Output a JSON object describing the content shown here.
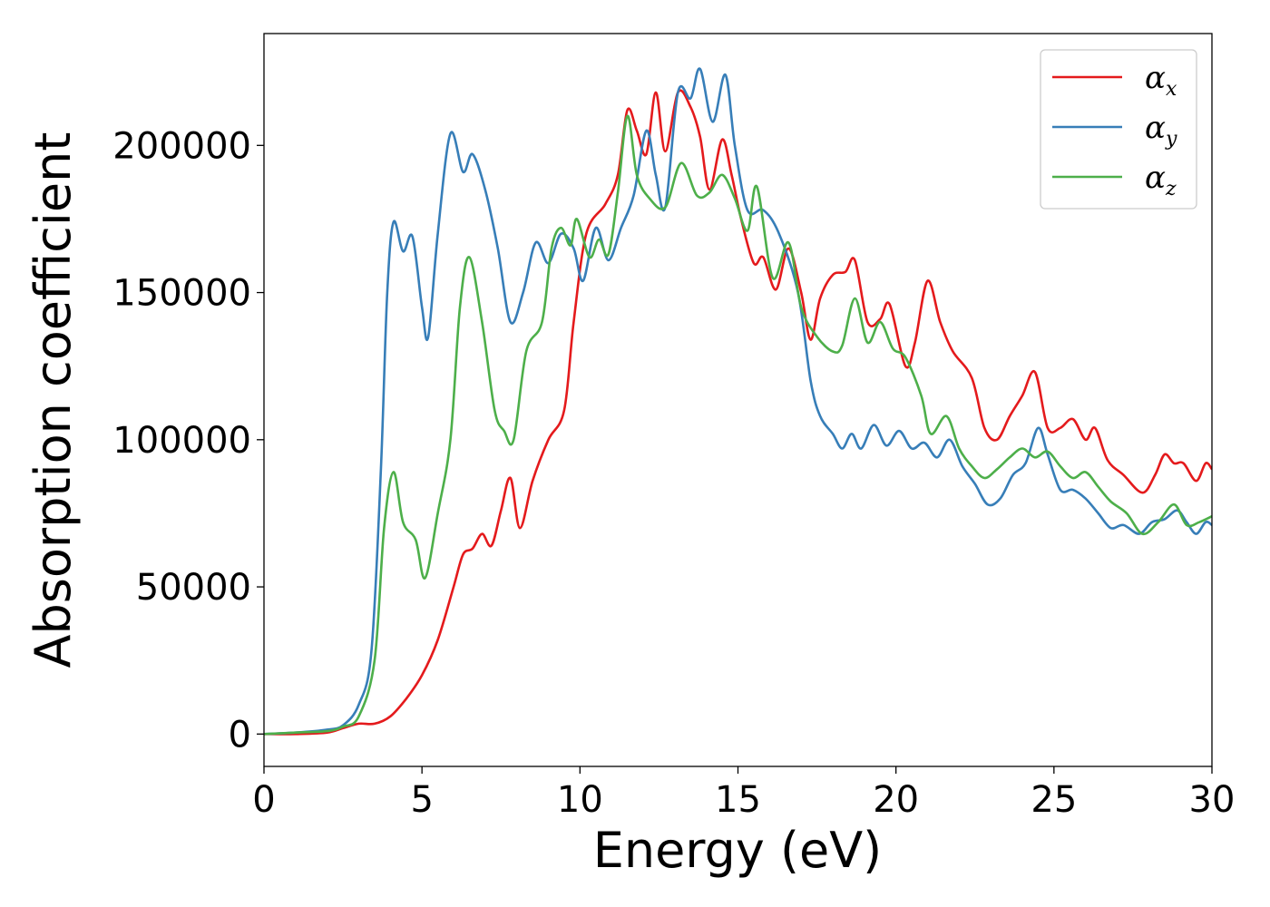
{
  "chart_data": {
    "type": "line",
    "xlabel": "Energy (eV)",
    "ylabel": "Absorption coefficient",
    "xlim": [
      0,
      30
    ],
    "ylim": [
      -11000,
      238000
    ],
    "xticks": [
      0,
      5,
      10,
      15,
      20,
      25,
      30
    ],
    "xtick_labels": [
      "0",
      "5",
      "10",
      "15",
      "20",
      "25",
      "30"
    ],
    "yticks": [
      0,
      50000,
      100000,
      150000,
      200000
    ],
    "ytick_labels": [
      "0",
      "50000",
      "100000",
      "150000",
      "200000"
    ],
    "grid": false,
    "legend_position": "top-right",
    "series": [
      {
        "name": "α_x",
        "label_main": "α",
        "label_sub": "x",
        "color": "#e41a1c",
        "points": [
          [
            0,
            0
          ],
          [
            1,
            0
          ],
          [
            2,
            500
          ],
          [
            2.5,
            2000
          ],
          [
            3,
            3500
          ],
          [
            3.5,
            3500
          ],
          [
            4,
            6000
          ],
          [
            4.5,
            12000
          ],
          [
            5,
            20000
          ],
          [
            5.5,
            32000
          ],
          [
            6,
            50000
          ],
          [
            6.3,
            61000
          ],
          [
            6.6,
            63000
          ],
          [
            6.9,
            68000
          ],
          [
            7.2,
            64000
          ],
          [
            7.5,
            76000
          ],
          [
            7.8,
            87000
          ],
          [
            8.1,
            70000
          ],
          [
            8.5,
            86000
          ],
          [
            9,
            100000
          ],
          [
            9.5,
            110000
          ],
          [
            9.8,
            140000
          ],
          [
            10.2,
            170000
          ],
          [
            10.8,
            180000
          ],
          [
            11.2,
            190000
          ],
          [
            11.5,
            212000
          ],
          [
            11.8,
            205000
          ],
          [
            12.1,
            197000
          ],
          [
            12.4,
            218000
          ],
          [
            12.7,
            198000
          ],
          [
            13.1,
            218000
          ],
          [
            13.5,
            213000
          ],
          [
            13.8,
            203000
          ],
          [
            14.1,
            185000
          ],
          [
            14.5,
            202000
          ],
          [
            14.8,
            190000
          ],
          [
            15.1,
            175000
          ],
          [
            15.5,
            160000
          ],
          [
            15.8,
            162000
          ],
          [
            16.2,
            151000
          ],
          [
            16.6,
            165000
          ],
          [
            17,
            150000
          ],
          [
            17.3,
            134000
          ],
          [
            17.6,
            148000
          ],
          [
            18,
            156000
          ],
          [
            18.4,
            157000
          ],
          [
            18.7,
            161000
          ],
          [
            19.1,
            140000
          ],
          [
            19.5,
            141000
          ],
          [
            19.8,
            146000
          ],
          [
            20.3,
            125000
          ],
          [
            20.6,
            133000
          ],
          [
            21,
            154000
          ],
          [
            21.4,
            140000
          ],
          [
            21.8,
            130000
          ],
          [
            22.4,
            121000
          ],
          [
            22.8,
            104000
          ],
          [
            23.2,
            100000
          ],
          [
            23.6,
            108000
          ],
          [
            24,
            115000
          ],
          [
            24.4,
            123000
          ],
          [
            24.8,
            104000
          ],
          [
            25.2,
            104000
          ],
          [
            25.6,
            107000
          ],
          [
            26,
            100000
          ],
          [
            26.3,
            104000
          ],
          [
            26.7,
            93000
          ],
          [
            27.2,
            88000
          ],
          [
            27.8,
            82000
          ],
          [
            28.2,
            88000
          ],
          [
            28.5,
            95000
          ],
          [
            28.8,
            92000
          ],
          [
            29.1,
            92000
          ],
          [
            29.5,
            86000
          ],
          [
            29.8,
            92000
          ],
          [
            30,
            90000
          ]
        ]
      },
      {
        "name": "α_y",
        "label_main": "α",
        "label_sub": "y",
        "color": "#377eb8",
        "points": [
          [
            0,
            0
          ],
          [
            1,
            500
          ],
          [
            2,
            1500
          ],
          [
            2.5,
            3000
          ],
          [
            3,
            10000
          ],
          [
            3.4,
            28000
          ],
          [
            3.7,
            90000
          ],
          [
            3.9,
            150000
          ],
          [
            4.1,
            174000
          ],
          [
            4.4,
            164000
          ],
          [
            4.7,
            169000
          ],
          [
            5,
            145000
          ],
          [
            5.2,
            135000
          ],
          [
            5.5,
            170000
          ],
          [
            5.9,
            204000
          ],
          [
            6.3,
            191000
          ],
          [
            6.6,
            197000
          ],
          [
            7,
            185000
          ],
          [
            7.4,
            165000
          ],
          [
            7.8,
            140000
          ],
          [
            8.2,
            150000
          ],
          [
            8.6,
            167000
          ],
          [
            9,
            160000
          ],
          [
            9.4,
            170000
          ],
          [
            9.8,
            165000
          ],
          [
            10.1,
            154000
          ],
          [
            10.5,
            172000
          ],
          [
            10.9,
            161000
          ],
          [
            11.3,
            172000
          ],
          [
            11.7,
            183000
          ],
          [
            12.1,
            205000
          ],
          [
            12.4,
            190000
          ],
          [
            12.7,
            179000
          ],
          [
            13.1,
            218000
          ],
          [
            13.5,
            216000
          ],
          [
            13.8,
            226000
          ],
          [
            14.2,
            208000
          ],
          [
            14.6,
            224000
          ],
          [
            14.9,
            200000
          ],
          [
            15.3,
            178000
          ],
          [
            15.8,
            178000
          ],
          [
            16.3,
            170000
          ],
          [
            16.9,
            150000
          ],
          [
            17.3,
            120000
          ],
          [
            17.6,
            108000
          ],
          [
            18,
            102000
          ],
          [
            18.3,
            97000
          ],
          [
            18.6,
            102000
          ],
          [
            18.9,
            97000
          ],
          [
            19.3,
            105000
          ],
          [
            19.7,
            98000
          ],
          [
            20.1,
            103000
          ],
          [
            20.5,
            97000
          ],
          [
            20.9,
            99000
          ],
          [
            21.3,
            94000
          ],
          [
            21.7,
            100000
          ],
          [
            22.1,
            91000
          ],
          [
            22.5,
            85000
          ],
          [
            22.9,
            78000
          ],
          [
            23.3,
            80000
          ],
          [
            23.7,
            88000
          ],
          [
            24.1,
            92000
          ],
          [
            24.5,
            104000
          ],
          [
            24.8,
            95000
          ],
          [
            25.2,
            83000
          ],
          [
            25.6,
            83000
          ],
          [
            26,
            80000
          ],
          [
            26.4,
            75000
          ],
          [
            26.8,
            70000
          ],
          [
            27.2,
            71000
          ],
          [
            27.7,
            68000
          ],
          [
            28.1,
            72000
          ],
          [
            28.5,
            73000
          ],
          [
            28.9,
            76000
          ],
          [
            29.2,
            72000
          ],
          [
            29.5,
            68000
          ],
          [
            29.8,
            72000
          ],
          [
            30,
            71000
          ]
        ]
      },
      {
        "name": "α_z",
        "label_main": "α",
        "label_sub": "z",
        "color": "#4daf4a",
        "points": [
          [
            0,
            0
          ],
          [
            1,
            500
          ],
          [
            2,
            1000
          ],
          [
            2.5,
            2500
          ],
          [
            3,
            6000
          ],
          [
            3.5,
            25000
          ],
          [
            3.8,
            70000
          ],
          [
            4.1,
            89000
          ],
          [
            4.4,
            72000
          ],
          [
            4.8,
            66000
          ],
          [
            5.1,
            53000
          ],
          [
            5.5,
            75000
          ],
          [
            5.9,
            100000
          ],
          [
            6.2,
            145000
          ],
          [
            6.5,
            162000
          ],
          [
            6.9,
            140000
          ],
          [
            7.3,
            110000
          ],
          [
            7.6,
            103000
          ],
          [
            7.9,
            100000
          ],
          [
            8.3,
            130000
          ],
          [
            8.8,
            140000
          ],
          [
            9.1,
            165000
          ],
          [
            9.4,
            172000
          ],
          [
            9.7,
            166000
          ],
          [
            9.9,
            175000
          ],
          [
            10.3,
            162000
          ],
          [
            10.6,
            168000
          ],
          [
            10.9,
            163000
          ],
          [
            11.2,
            184000
          ],
          [
            11.5,
            210000
          ],
          [
            11.8,
            190000
          ],
          [
            12.2,
            182000
          ],
          [
            12.7,
            179000
          ],
          [
            13.2,
            194000
          ],
          [
            13.7,
            183000
          ],
          [
            14.1,
            184000
          ],
          [
            14.5,
            190000
          ],
          [
            14.9,
            182000
          ],
          [
            15.3,
            171000
          ],
          [
            15.6,
            186000
          ],
          [
            16.1,
            155000
          ],
          [
            16.6,
            167000
          ],
          [
            17,
            145000
          ],
          [
            17.5,
            135000
          ],
          [
            18,
            130000
          ],
          [
            18.3,
            132000
          ],
          [
            18.7,
            148000
          ],
          [
            19.1,
            133000
          ],
          [
            19.5,
            140000
          ],
          [
            19.9,
            131000
          ],
          [
            20.3,
            128000
          ],
          [
            20.8,
            115000
          ],
          [
            21.1,
            102000
          ],
          [
            21.6,
            108000
          ],
          [
            22,
            97000
          ],
          [
            22.4,
            91000
          ],
          [
            22.8,
            87000
          ],
          [
            23.2,
            90000
          ],
          [
            23.6,
            94000
          ],
          [
            24,
            97000
          ],
          [
            24.4,
            94000
          ],
          [
            24.8,
            96000
          ],
          [
            25.2,
            91000
          ],
          [
            25.6,
            87000
          ],
          [
            26,
            89000
          ],
          [
            26.4,
            84000
          ],
          [
            26.8,
            79000
          ],
          [
            27.3,
            75000
          ],
          [
            27.8,
            68000
          ],
          [
            28.3,
            72000
          ],
          [
            28.8,
            78000
          ],
          [
            29.2,
            71000
          ],
          [
            29.6,
            72000
          ],
          [
            30,
            74000
          ]
        ]
      }
    ]
  }
}
